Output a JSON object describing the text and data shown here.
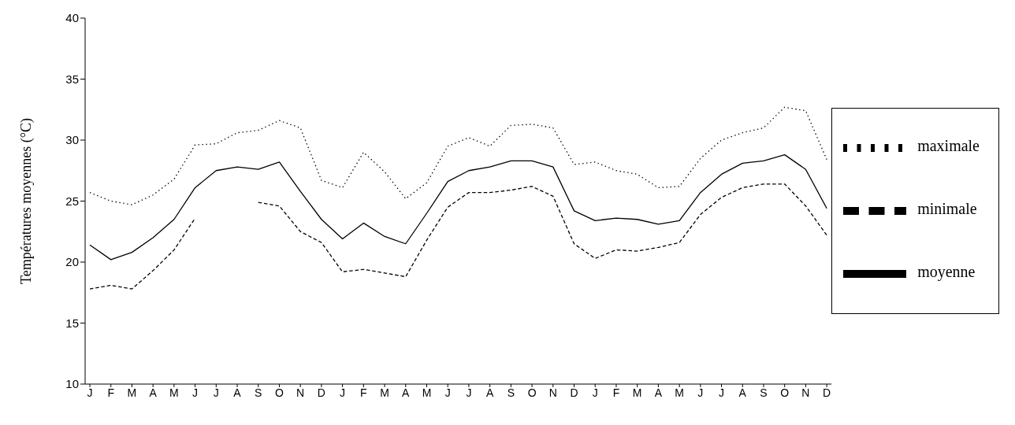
{
  "chart_data": {
    "type": "line",
    "ylabel": "Températures moyennes (°C)",
    "categories": [
      "J",
      "F",
      "M",
      "A",
      "M",
      "J",
      "J",
      "A",
      "S",
      "O",
      "N",
      "D",
      "J",
      "F",
      "M",
      "A",
      "M",
      "J",
      "J",
      "A",
      "S",
      "O",
      "N",
      "D",
      "J",
      "F",
      "M",
      "A",
      "M",
      "J",
      "J",
      "A",
      "S",
      "O",
      "N",
      "D"
    ],
    "series": [
      {
        "name": "moyenne",
        "color": "#000000",
        "line_style": "solid",
        "values": [
          21.4,
          20.2,
          20.8,
          22.0,
          23.5,
          26.1,
          27.5,
          27.8,
          27.6,
          28.2,
          25.8,
          23.5,
          21.9,
          23.2,
          22.1,
          21.5,
          24.0,
          26.6,
          27.5,
          27.8,
          28.3,
          28.3,
          27.8,
          24.2,
          23.4,
          23.6,
          23.5,
          23.1,
          23.4,
          25.7,
          27.2,
          28.1,
          28.3,
          28.8,
          27.6,
          24.4
        ]
      },
      {
        "name": "minimale",
        "color": "#000000",
        "line_style": "dashed",
        "values": [
          17.8,
          18.1,
          17.8,
          19.3,
          21.0,
          23.6,
          null,
          null,
          24.9,
          24.6,
          22.5,
          21.6,
          19.2,
          19.4,
          19.1,
          18.8,
          21.8,
          24.5,
          25.7,
          25.7,
          25.9,
          26.2,
          25.4,
          21.5,
          20.3,
          21.0,
          20.9,
          21.2,
          21.6,
          23.9,
          25.3,
          26.1,
          26.4,
          26.4,
          24.6,
          22.2
        ]
      },
      {
        "name": "maximale",
        "color": "#000000",
        "line_style": "dotted",
        "values": [
          25.7,
          25.0,
          24.7,
          25.5,
          26.8,
          29.6,
          29.7,
          30.6,
          30.8,
          31.6,
          31.0,
          26.7,
          26.1,
          29.0,
          27.4,
          25.2,
          26.5,
          29.5,
          30.2,
          29.5,
          31.2,
          31.3,
          31.0,
          28.0,
          28.2,
          27.5,
          27.2,
          26.1,
          26.2,
          28.5,
          30.0,
          30.6,
          31.0,
          32.7,
          32.4,
          28.4
        ]
      }
    ],
    "ylim": [
      10,
      40
    ],
    "yticks": [
      10,
      15,
      20,
      25,
      30,
      35,
      40
    ],
    "grid": false,
    "legend": "right",
    "marker": "none"
  }
}
